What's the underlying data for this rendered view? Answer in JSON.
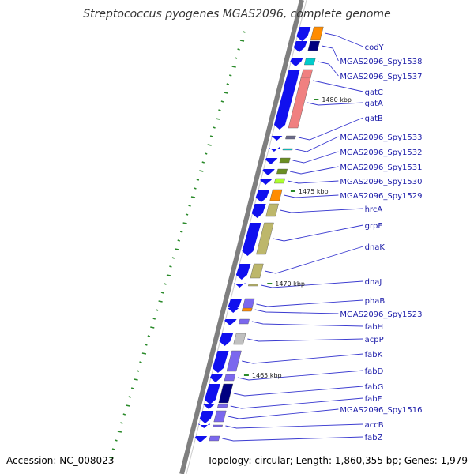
{
  "title": "Streptococcus pyogenes MGAS2096, complete genome",
  "footer": {
    "accession": "Accession: NC_008023",
    "topology": "Topology: circular; Length: 1,860,355 bp; Genes: 1,979"
  },
  "scale_marks": [
    "1480 kbp",
    "1475 kbp",
    "1470 kbp",
    "1465 kbp"
  ],
  "colors": {
    "backbone": "#7f7f7f",
    "forward_gene": "#1010ee",
    "label": "#1a1aa8",
    "leader": "#3a3ad0",
    "gc_marks": "#2a8a2a"
  },
  "genes": [
    {
      "name": "codY",
      "color": "#ff8c00"
    },
    {
      "name": "MGAS2096_Spy1538",
      "color": "#000080"
    },
    {
      "name": "MGAS2096_Spy1537",
      "color": "#00cccc"
    },
    {
      "name": "gatC",
      "color": "#f08080"
    },
    {
      "name": "gatA",
      "color": "#f08080"
    },
    {
      "name": "gatB",
      "color": "#6a6a8a"
    },
    {
      "name": "MGAS2096_Spy1533",
      "color": "#00cccc"
    },
    {
      "name": "MGAS2096_Spy1532",
      "color": "#6b8e23"
    },
    {
      "name": "MGAS2096_Spy1531",
      "color": "#6b8e23"
    },
    {
      "name": "MGAS2096_Spy1530",
      "color": "#adff2f"
    },
    {
      "name": "MGAS2096_Spy1529",
      "color": "#ff8c00"
    },
    {
      "name": "hrcA",
      "color": "#bdb76b"
    },
    {
      "name": "grpE",
      "color": "#bdb76b"
    },
    {
      "name": "dnaK",
      "color": "#bdb76b"
    },
    {
      "name": "dnaJ",
      "color": "#bdb76b"
    },
    {
      "name": "phaB",
      "color": "#7b68ee"
    },
    {
      "name": "MGAS2096_Spy1523",
      "color": "#ff8c00"
    },
    {
      "name": "fabH",
      "color": "#7b68ee"
    },
    {
      "name": "acpP",
      "color": "#c0c0c0"
    },
    {
      "name": "fabK",
      "color": "#7b68ee"
    },
    {
      "name": "fabD",
      "color": "#7b68ee"
    },
    {
      "name": "fabG",
      "color": "#000080"
    },
    {
      "name": "fabF",
      "color": "#7b68ee"
    },
    {
      "name": "MGAS2096_Spy1516",
      "color": "#7b68ee"
    },
    {
      "name": "accB",
      "color": "#7b68ee"
    },
    {
      "name": "fabZ",
      "color": "#7b68ee"
    }
  ]
}
